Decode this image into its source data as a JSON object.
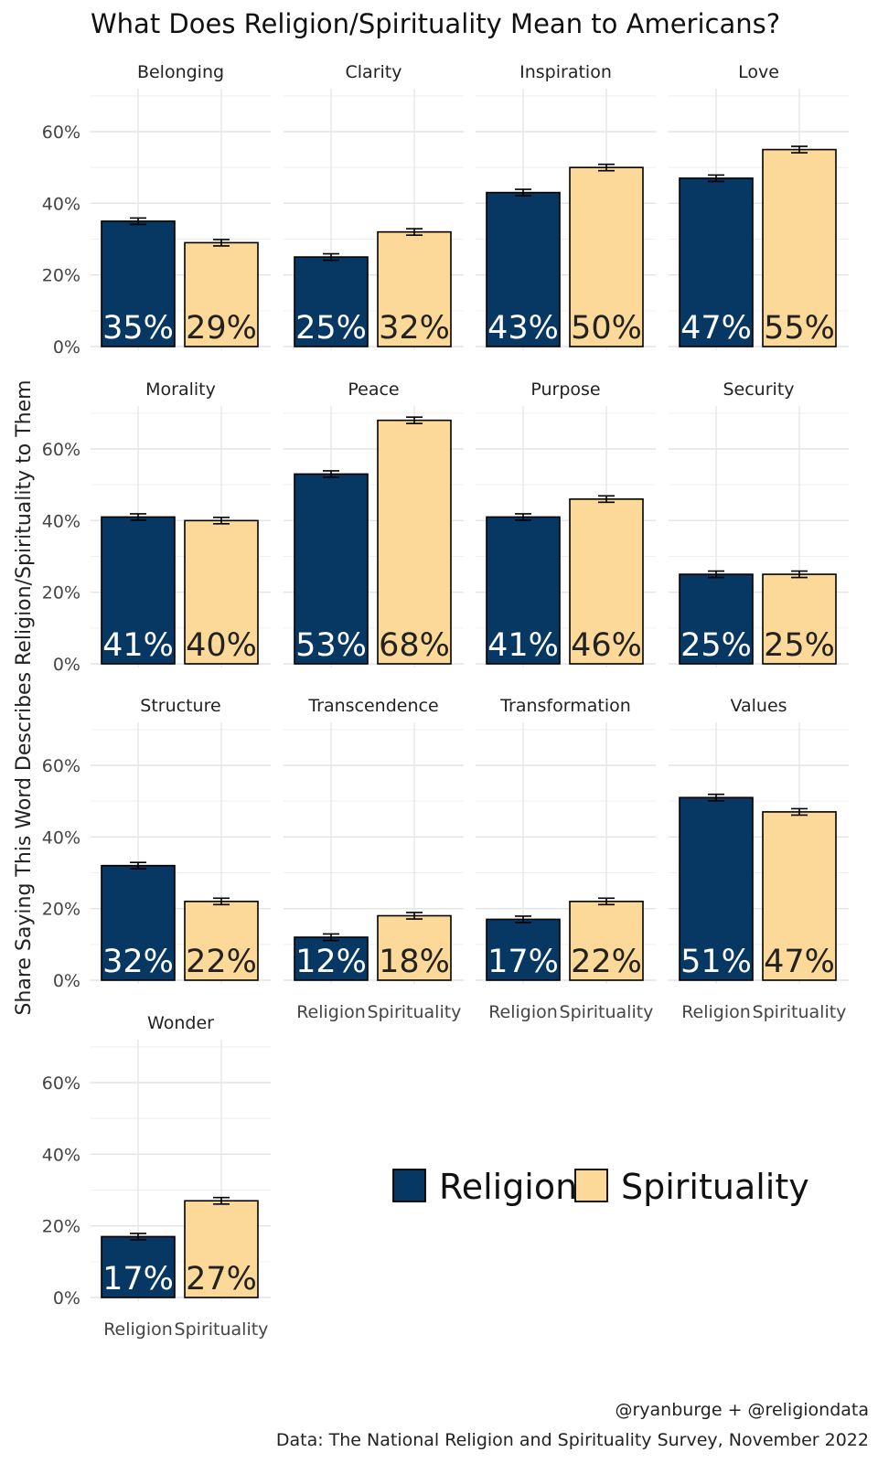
{
  "chart_data": {
    "type": "bar",
    "title": "What Does Religion/Spirituality Mean to Americans?",
    "ylabel": "Share Saying This Word Describes Religion/Spirituality to Them",
    "xlabel": "",
    "ylim": [
      0,
      0.72
    ],
    "yticks": [
      0,
      0.2,
      0.4,
      0.6
    ],
    "ytick_labels": [
      "0%",
      "20%",
      "40%",
      "60%"
    ],
    "categories": [
      "Religion",
      "Spirituality"
    ],
    "series_colors": {
      "Religion": "#073763",
      "Spirituality": "#FCD998"
    },
    "label_colors": {
      "Religion": "#ffffff",
      "Spirituality": "#222222"
    },
    "facets": [
      {
        "name": "Belonging",
        "values": [
          0.35,
          0.29
        ],
        "labels": [
          "35%",
          "29%"
        ]
      },
      {
        "name": "Clarity",
        "values": [
          0.25,
          0.32
        ],
        "labels": [
          "25%",
          "32%"
        ]
      },
      {
        "name": "Inspiration",
        "values": [
          0.43,
          0.5
        ],
        "labels": [
          "43%",
          "50%"
        ]
      },
      {
        "name": "Love",
        "values": [
          0.47,
          0.55
        ],
        "labels": [
          "47%",
          "55%"
        ]
      },
      {
        "name": "Morality",
        "values": [
          0.41,
          0.4
        ],
        "labels": [
          "41%",
          "40%"
        ]
      },
      {
        "name": "Peace",
        "values": [
          0.53,
          0.68
        ],
        "labels": [
          "53%",
          "68%"
        ]
      },
      {
        "name": "Purpose",
        "values": [
          0.41,
          0.46
        ],
        "labels": [
          "41%",
          "46%"
        ]
      },
      {
        "name": "Security",
        "values": [
          0.25,
          0.25
        ],
        "labels": [
          "25%",
          "25%"
        ]
      },
      {
        "name": "Structure",
        "values": [
          0.32,
          0.22
        ],
        "labels": [
          "32%",
          "22%"
        ]
      },
      {
        "name": "Transcendence",
        "values": [
          0.12,
          0.18
        ],
        "labels": [
          "12%",
          "18%"
        ]
      },
      {
        "name": "Transformation",
        "values": [
          0.17,
          0.22
        ],
        "labels": [
          "17%",
          "22%"
        ]
      },
      {
        "name": "Values",
        "values": [
          0.51,
          0.47
        ],
        "labels": [
          "51%",
          "47%"
        ]
      },
      {
        "name": "Wonder",
        "values": [
          0.17,
          0.27
        ],
        "labels": [
          "17%",
          "27%"
        ]
      }
    ],
    "error_margin": 0.009,
    "legend": {
      "items": [
        "Religion",
        "Spirituality"
      ],
      "position": "bottom-right"
    },
    "caption": [
      "@ryanburge + @religiondata",
      "Data: The National Religion and Spirituality Survey, November 2022"
    ]
  }
}
